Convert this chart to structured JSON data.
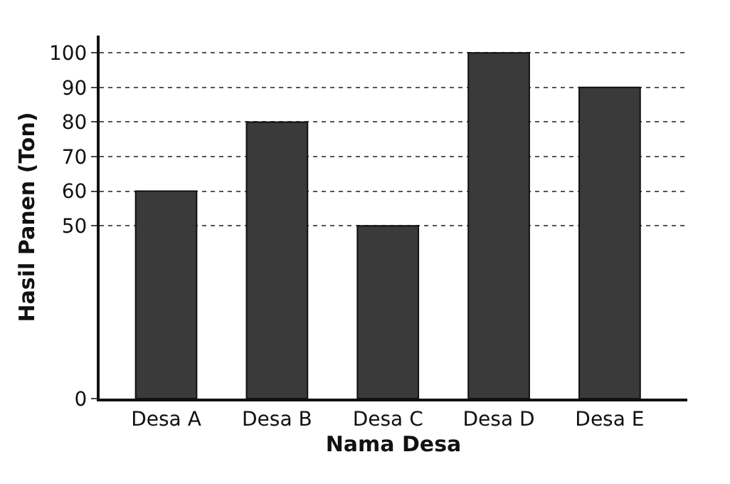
{
  "chart_data": {
    "type": "bar",
    "xlabel": "Nama Desa",
    "ylabel": "Hasil Panen (Ton)",
    "categories": [
      "Desa A",
      "Desa B",
      "Desa C",
      "Desa D",
      "Desa E"
    ],
    "values": [
      60,
      80,
      50,
      100,
      90
    ],
    "color": "#3a3a3a",
    "ylim": [
      0,
      105
    ],
    "yticks": [
      0,
      50,
      60,
      70,
      80,
      90,
      100
    ],
    "grid": "y",
    "legend": false
  }
}
